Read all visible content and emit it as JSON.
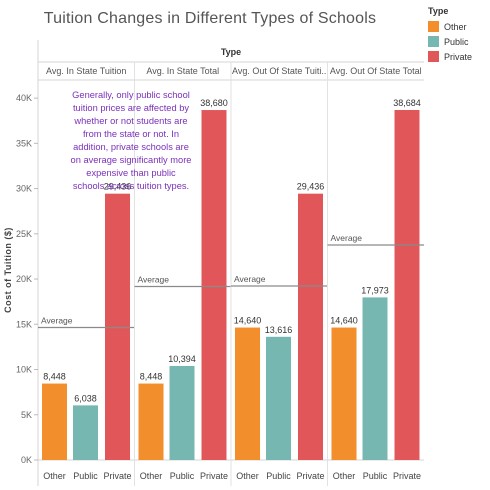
{
  "chart_data": {
    "type": "bar",
    "title": "Tuition Changes in Different Types of Schools",
    "column_header": "Type",
    "ylabel": "Cost of Tuition ($)",
    "ylim": [
      0,
      42000
    ],
    "yticks": [
      0,
      5000,
      10000,
      15000,
      20000,
      25000,
      30000,
      35000,
      40000
    ],
    "ytick_labels": [
      "0K",
      "5K",
      "10K",
      "15K",
      "20K",
      "25K",
      "30K",
      "35K",
      "40K"
    ],
    "categories": [
      "Other",
      "Public",
      "Private"
    ],
    "reference_line_label": "Average",
    "panels": [
      {
        "name": "Avg. In State Tuition",
        "values": [
          8448,
          6038,
          29436
        ],
        "labels": [
          "8,448",
          "6,038",
          "29,436"
        ],
        "average": 14641
      },
      {
        "name": "Avg. In State Total",
        "values": [
          8448,
          10394,
          38680
        ],
        "labels": [
          "8,448",
          "10,394",
          "38,680"
        ],
        "average": 19174
      },
      {
        "name": "Avg. Out Of State Tuiti..",
        "values": [
          14640,
          13616,
          29436
        ],
        "labels": [
          "14,640",
          "13,616",
          "29,436"
        ],
        "average": 19231
      },
      {
        "name": "Avg. Out Of State Total",
        "values": [
          14640,
          17973,
          38684
        ],
        "labels": [
          "14,640",
          "17,973",
          "38,684"
        ],
        "average": 23766
      }
    ],
    "legend": {
      "title": "Type",
      "items": [
        {
          "name": "Other",
          "color": "#f28e2b"
        },
        {
          "name": "Public",
          "color": "#76b7b2"
        },
        {
          "name": "Private",
          "color": "#e15759"
        }
      ],
      "position": "top-right"
    },
    "annotation": "Generally, only public school tuition prices are affected by whether or not students are from the state or not. In addition, private schools are on average significantly more expensive than public schools across tuition types.",
    "grid": false
  }
}
